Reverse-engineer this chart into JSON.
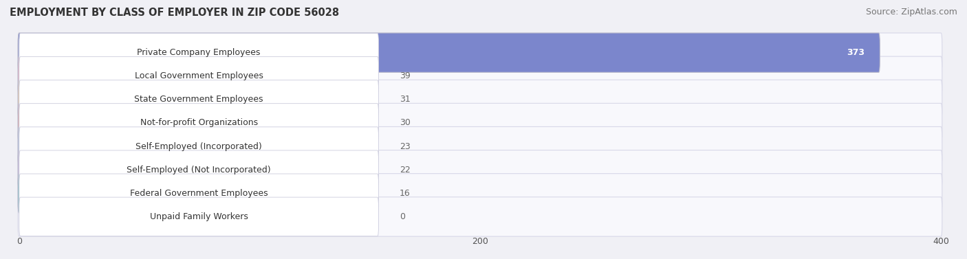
{
  "title": "EMPLOYMENT BY CLASS OF EMPLOYER IN ZIP CODE 56028",
  "source": "Source: ZipAtlas.com",
  "categories": [
    "Private Company Employees",
    "Local Government Employees",
    "State Government Employees",
    "Not-for-profit Organizations",
    "Self-Employed (Incorporated)",
    "Self-Employed (Not Incorporated)",
    "Federal Government Employees",
    "Unpaid Family Workers"
  ],
  "values": [
    373,
    39,
    31,
    30,
    23,
    22,
    16,
    0
  ],
  "bar_colors": [
    "#7b86cc",
    "#f4a0b0",
    "#f5c98a",
    "#e8968c",
    "#a8bede",
    "#c4aed8",
    "#6dbfbe",
    "#b8c8e8"
  ],
  "xlim": [
    0,
    400
  ],
  "xticks": [
    0,
    200,
    400
  ],
  "value_label_color_inside": "#ffffff",
  "value_label_color_outside": "#666666",
  "background_color": "#f0f0f5",
  "bar_background_color": "#ffffff",
  "row_bg_color": "#f8f8fc",
  "title_fontsize": 10.5,
  "source_fontsize": 9,
  "label_fontsize": 9,
  "value_fontsize": 9
}
